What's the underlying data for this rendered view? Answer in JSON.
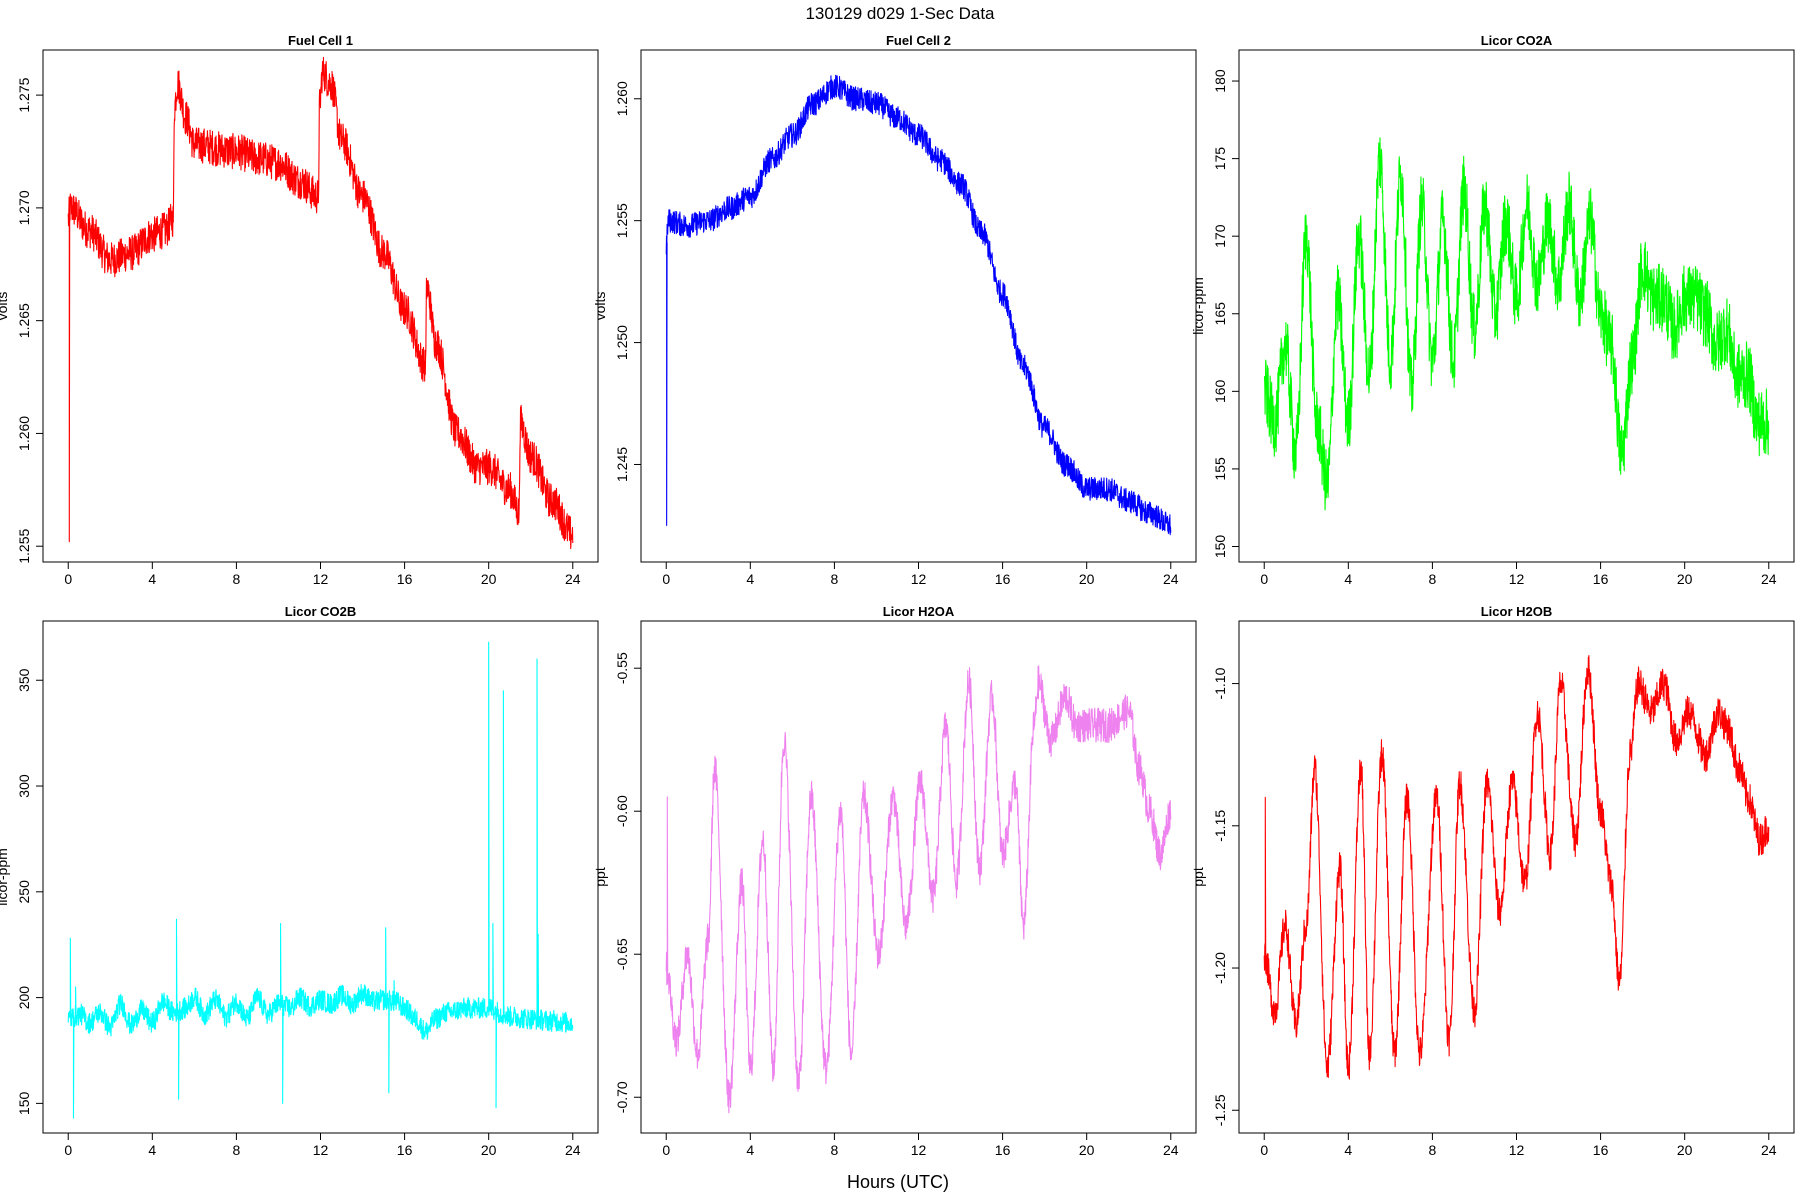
{
  "figure": {
    "title": "130129   d029   1-Sec Data",
    "xlabel": "Hours (UTC)"
  },
  "chart_data": [
    {
      "type": "line",
      "title": "Fuel Cell 1",
      "ylabel": "volts",
      "color": "#ff0000",
      "xlim": [
        -1.2,
        25.2
      ],
      "ylim": [
        1.2543,
        1.277
      ],
      "xticks": [
        0,
        4,
        8,
        12,
        16,
        20,
        24
      ],
      "yticks": [
        1.255,
        1.26,
        1.265,
        1.27,
        1.275
      ],
      "ytick_labels": [
        "1.255",
        "1.260",
        "1.265",
        "1.270",
        "1.275"
      ],
      "noise": 0.0008,
      "spikes": [
        {
          "x": 0.05,
          "y": 1.2552
        }
      ],
      "x": [
        0,
        0.1,
        1,
        2,
        3,
        4,
        4.6,
        5.0,
        5.05,
        5.2,
        5.6,
        6,
        8,
        9,
        10,
        11,
        11.9,
        11.95,
        12.1,
        12.5,
        13,
        14,
        15,
        16,
        17,
        17.05,
        17.5,
        18.5,
        19.5,
        20,
        21,
        21.45,
        21.5,
        22,
        23,
        24
      ],
      "y": [
        1.2695,
        1.27,
        1.269,
        1.2677,
        1.268,
        1.2688,
        1.269,
        1.2695,
        1.2745,
        1.2755,
        1.274,
        1.2728,
        1.2725,
        1.2722,
        1.272,
        1.2712,
        1.2705,
        1.2745,
        1.276,
        1.2755,
        1.273,
        1.2705,
        1.268,
        1.2655,
        1.263,
        1.2665,
        1.264,
        1.26,
        1.2585,
        1.2585,
        1.2575,
        1.2565,
        1.2605,
        1.259,
        1.257,
        1.2555
      ]
    },
    {
      "type": "line",
      "title": "Fuel Cell 2",
      "ylabel": "volts",
      "color": "#0000ff",
      "xlim": [
        -1.2,
        25.2
      ],
      "ylim": [
        1.241,
        1.262
      ],
      "xticks": [
        0,
        4,
        8,
        12,
        16,
        20,
        24
      ],
      "yticks": [
        1.245,
        1.25,
        1.255,
        1.26
      ],
      "ytick_labels": [
        "1.245",
        "1.250",
        "1.255",
        "1.260"
      ],
      "noise": 0.0005,
      "spikes": [
        {
          "x": 0.02,
          "y": 1.2425
        }
      ],
      "x": [
        0,
        0.1,
        1,
        2,
        3,
        4,
        5,
        6,
        7,
        8,
        9,
        10,
        11,
        12,
        13,
        14,
        15,
        16,
        17,
        18,
        19,
        20,
        21,
        22,
        23,
        24
      ],
      "y": [
        1.254,
        1.255,
        1.2548,
        1.255,
        1.2555,
        1.256,
        1.2575,
        1.2585,
        1.2598,
        1.2605,
        1.26,
        1.2598,
        1.2592,
        1.2585,
        1.2575,
        1.2565,
        1.2545,
        1.252,
        1.249,
        1.2465,
        1.245,
        1.244,
        1.244,
        1.2435,
        1.243,
        1.2425
      ]
    },
    {
      "type": "line",
      "title": "Licor CO2A",
      "ylabel": "licor-ppm",
      "color": "#00ff00",
      "xlim": [
        -1.2,
        25.2
      ],
      "ylim": [
        149,
        182
      ],
      "xticks": [
        0,
        4,
        8,
        12,
        16,
        20,
        24
      ],
      "yticks": [
        150,
        155,
        160,
        165,
        170,
        175,
        180
      ],
      "ytick_labels": [
        "150",
        "155",
        "160",
        "165",
        "170",
        "175",
        "180"
      ],
      "noise": 2.2,
      "spikes": [],
      "x": [
        0,
        0.5,
        1,
        1.5,
        2,
        2.5,
        3,
        3.5,
        4,
        4.5,
        5,
        5.5,
        6,
        6.5,
        7,
        7.5,
        8,
        8.5,
        9,
        9.5,
        10,
        10.5,
        11,
        11.5,
        12,
        12.5,
        13,
        13.5,
        14,
        14.5,
        15,
        15.5,
        16,
        16.5,
        17,
        17.5,
        18,
        18.5,
        19,
        19.5,
        20,
        20.5,
        21,
        21.5,
        22,
        22.5,
        23,
        23.5,
        24
      ],
      "y": [
        160,
        158,
        163,
        156,
        170,
        158,
        154,
        166,
        158,
        170,
        161,
        175,
        162,
        174,
        160,
        172,
        162,
        171,
        162,
        173,
        164,
        172,
        165,
        171,
        166,
        172,
        167,
        171,
        167,
        172,
        166,
        171,
        165,
        163,
        156,
        162,
        168,
        166,
        166,
        164,
        166,
        166,
        165,
        163,
        164,
        161,
        161,
        158,
        158
      ]
    },
    {
      "type": "line",
      "title": "Licor CO2B",
      "ylabel": "licor-ppm",
      "color": "#00ffff",
      "xlim": [
        -1.2,
        25.2
      ],
      "ylim": [
        136,
        378
      ],
      "xticks": [
        0,
        4,
        8,
        12,
        16,
        20,
        24
      ],
      "yticks": [
        150,
        200,
        250,
        300,
        350
      ],
      "ytick_labels": [
        "150",
        "200",
        "250",
        "300",
        "350"
      ],
      "noise": 5,
      "spikes": [
        {
          "x": 0.1,
          "y": 228
        },
        {
          "x": 0.25,
          "y": 143
        },
        {
          "x": 0.35,
          "y": 205
        },
        {
          "x": 5.15,
          "y": 237
        },
        {
          "x": 5.25,
          "y": 152
        },
        {
          "x": 10.1,
          "y": 235
        },
        {
          "x": 10.2,
          "y": 150
        },
        {
          "x": 15.1,
          "y": 233
        },
        {
          "x": 15.25,
          "y": 155
        },
        {
          "x": 15.5,
          "y": 208
        },
        {
          "x": 20.0,
          "y": 368
        },
        {
          "x": 20.2,
          "y": 235
        },
        {
          "x": 20.35,
          "y": 148
        },
        {
          "x": 20.7,
          "y": 345
        },
        {
          "x": 22.3,
          "y": 360
        },
        {
          "x": 22.35,
          "y": 230
        }
      ],
      "x": [
        0,
        0.6,
        1,
        1.5,
        2,
        2.5,
        3,
        3.5,
        4,
        4.5,
        5,
        5.6,
        6,
        6.5,
        7,
        7.5,
        8,
        8.5,
        9,
        9.5,
        10,
        10.6,
        11,
        11.5,
        12,
        12.5,
        13,
        13.5,
        14,
        14.5,
        15,
        15.6,
        16,
        16.5,
        17,
        17.5,
        18,
        19,
        20,
        20.8,
        21,
        22,
        23,
        24
      ],
      "y": [
        190,
        192,
        188,
        193,
        186,
        197,
        187,
        194,
        188,
        198,
        193,
        195,
        200,
        192,
        199,
        191,
        198,
        190,
        200,
        192,
        197,
        195,
        200,
        196,
        199,
        197,
        201,
        197,
        202,
        198,
        199,
        198,
        195,
        190,
        184,
        190,
        193,
        195,
        195,
        192,
        191,
        190,
        189,
        188
      ]
    },
    {
      "type": "line",
      "title": "Licor H2OA",
      "ylabel": "ppt",
      "color": "#ee82ee",
      "xlim": [
        -1.2,
        25.2
      ],
      "ylim": [
        -0.7125,
        -0.5335
      ],
      "xticks": [
        0,
        4,
        8,
        12,
        16,
        20,
        24
      ],
      "yticks": [
        -0.7,
        -0.65,
        -0.6,
        -0.55
      ],
      "ytick_labels": [
        "-0.70",
        "-0.65",
        "-0.60",
        "-0.55"
      ],
      "noise": 0.006,
      "spikes": [
        {
          "x": 0.05,
          "y": -0.595
        }
      ],
      "x": [
        0,
        0.5,
        1,
        1.5,
        2,
        2.3,
        3,
        3.6,
        4,
        4.6,
        5.1,
        5.6,
        6.3,
        6.9,
        7.6,
        8.3,
        8.8,
        9.4,
        10.1,
        10.8,
        11.4,
        12.1,
        12.7,
        13.3,
        13.8,
        14.4,
        14.9,
        15.5,
        16,
        16.6,
        17,
        17.5,
        17.7,
        18.3,
        19,
        19.5,
        20,
        21,
        22,
        22.5,
        23,
        23.5,
        24
      ],
      "y": [
        -0.655,
        -0.68,
        -0.65,
        -0.685,
        -0.645,
        -0.585,
        -0.7,
        -0.625,
        -0.69,
        -0.61,
        -0.69,
        -0.575,
        -0.695,
        -0.595,
        -0.69,
        -0.6,
        -0.685,
        -0.595,
        -0.65,
        -0.595,
        -0.64,
        -0.59,
        -0.63,
        -0.57,
        -0.625,
        -0.555,
        -0.62,
        -0.56,
        -0.615,
        -0.59,
        -0.64,
        -0.57,
        -0.555,
        -0.575,
        -0.56,
        -0.57,
        -0.57,
        -0.57,
        -0.565,
        -0.585,
        -0.6,
        -0.615,
        -0.6
      ]
    },
    {
      "type": "line",
      "title": "Licor H2OB",
      "ylabel": "ppt",
      "color": "#ff0000",
      "xlim": [
        -1.2,
        25.2
      ],
      "ylim": [
        -1.258,
        -1.078
      ],
      "xticks": [
        0,
        4,
        8,
        12,
        16,
        20,
        24
      ],
      "yticks": [
        -1.25,
        -1.2,
        -1.15,
        -1.1
      ],
      "ytick_labels": [
        "-1.25",
        "-1.20",
        "-1.15",
        "-1.10"
      ],
      "noise": 0.006,
      "spikes": [
        {
          "x": 0.05,
          "y": -1.14
        }
      ],
      "x": [
        0,
        0.5,
        1,
        1.5,
        2,
        2.4,
        3,
        3.6,
        4,
        4.6,
        5,
        5.6,
        6.2,
        6.8,
        7.4,
        8.2,
        8.8,
        9.3,
        10,
        10.6,
        11.2,
        11.8,
        12.4,
        13,
        13.6,
        14.1,
        14.8,
        15.4,
        16,
        16.5,
        16.9,
        17.4,
        17.8,
        18.4,
        19,
        19.6,
        20.2,
        21,
        21.6,
        22,
        22.6,
        23,
        23.6,
        24
      ],
      "y": [
        -1.195,
        -1.215,
        -1.185,
        -1.22,
        -1.185,
        -1.13,
        -1.235,
        -1.165,
        -1.235,
        -1.13,
        -1.23,
        -1.125,
        -1.23,
        -1.14,
        -1.23,
        -1.14,
        -1.225,
        -1.135,
        -1.215,
        -1.135,
        -1.18,
        -1.135,
        -1.17,
        -1.11,
        -1.16,
        -1.1,
        -1.155,
        -1.095,
        -1.145,
        -1.17,
        -1.205,
        -1.125,
        -1.1,
        -1.11,
        -1.1,
        -1.12,
        -1.11,
        -1.125,
        -1.11,
        -1.115,
        -1.13,
        -1.14,
        -1.155,
        -1.15
      ]
    }
  ]
}
